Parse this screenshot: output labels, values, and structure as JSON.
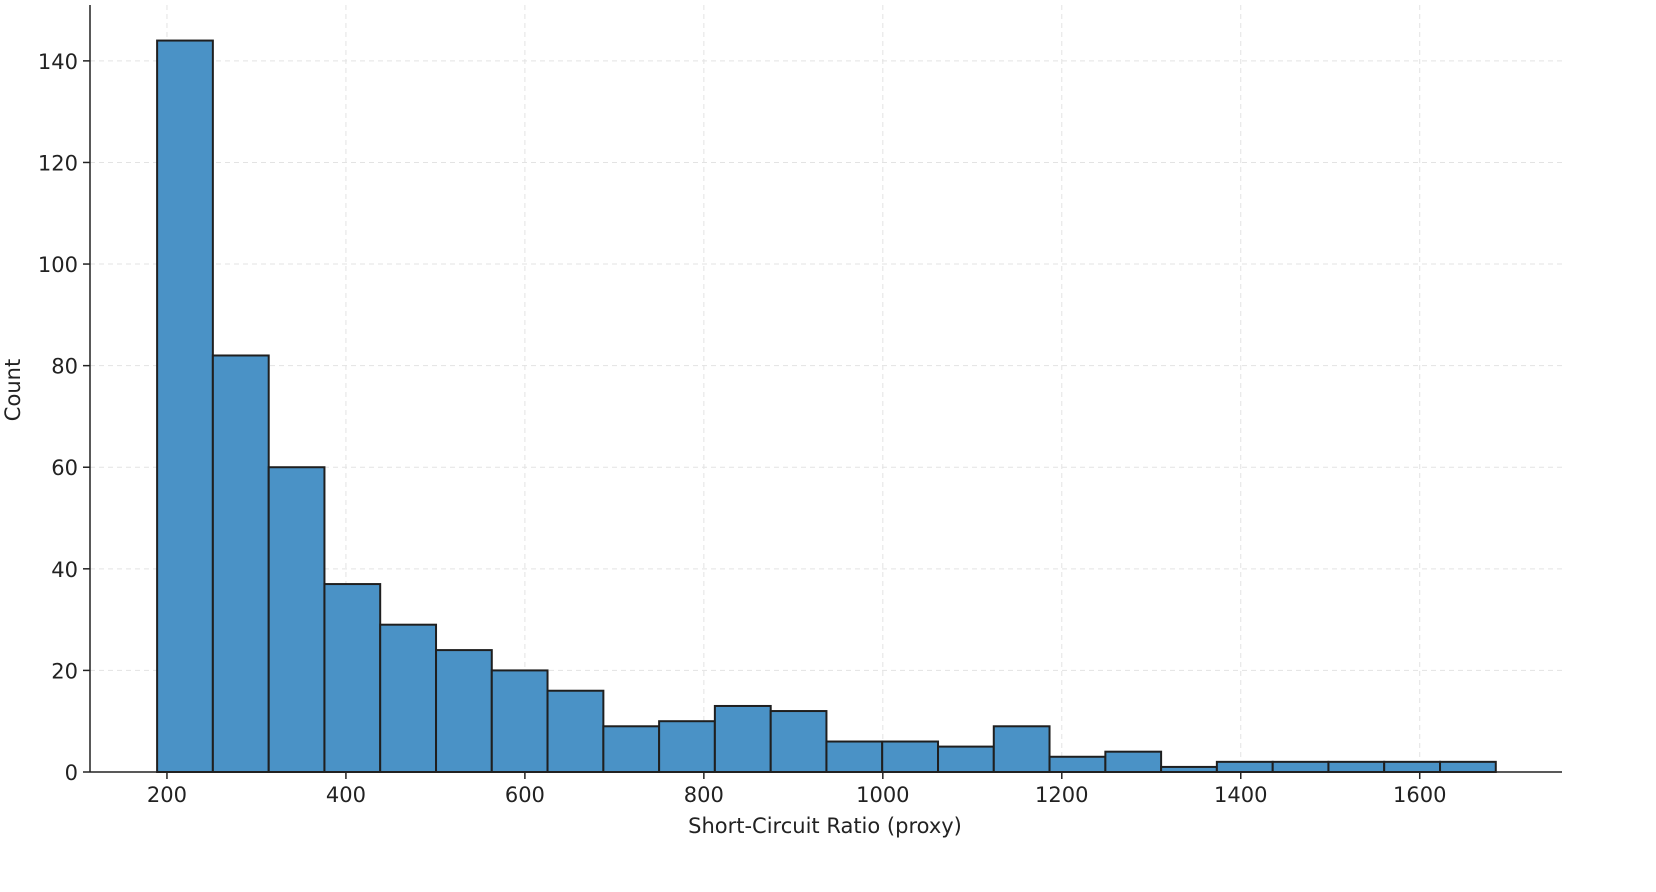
{
  "chart_data": {
    "type": "histogram",
    "x_label": "Short-Circuit Ratio (proxy)",
    "y_label": "Count",
    "bins": [
      189,
      251.3,
      313.7,
      376,
      438.3,
      500.7,
      563,
      625.3,
      687.7,
      750,
      812.3,
      874.7,
      937,
      999.3,
      1061.7,
      1124,
      1186.3,
      1248.7,
      1311,
      1373.3,
      1435.7,
      1498,
      1560.3,
      1622.7,
      1685
    ],
    "values": [
      144,
      82,
      60,
      37,
      29,
      24,
      20,
      16,
      9,
      10,
      13,
      12,
      6,
      6,
      5,
      9,
      3,
      4,
      1,
      2,
      2,
      2,
      2,
      2
    ],
    "color": "#4a92c6",
    "xlim": [
      114,
      1759
    ],
    "xticks": [
      200,
      400,
      600,
      800,
      1000,
      1200,
      1400,
      1600
    ],
    "ylim": [
      0,
      151
    ],
    "yticks": [
      0,
      20,
      40,
      60,
      80,
      100,
      120,
      140
    ],
    "grid": true
  }
}
